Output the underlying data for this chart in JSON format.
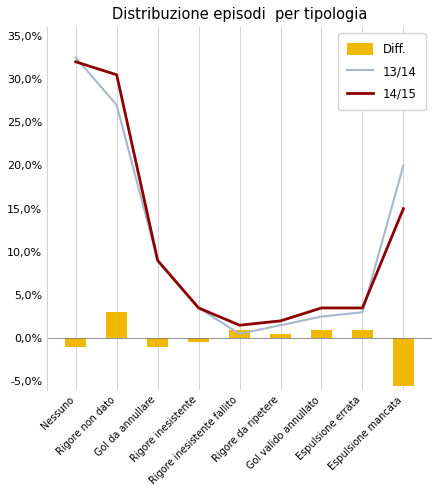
{
  "categories": [
    "Nessuno",
    "Rigore non dato",
    "Gol da annullare",
    "Rigore inesistente",
    "Rigore inesistente fallito",
    "Rigore da ripetere",
    "Gol valido annullato",
    "Espulsione errata",
    "Espulsione mancata"
  ],
  "series_1314": [
    0.325,
    0.27,
    0.09,
    0.035,
    0.005,
    0.015,
    0.025,
    0.03,
    0.2
  ],
  "series_1415": [
    0.32,
    0.305,
    0.09,
    0.035,
    0.015,
    0.02,
    0.035,
    0.035,
    0.15
  ],
  "diff": [
    -0.01,
    0.03,
    -0.01,
    -0.005,
    0.01,
    0.005,
    0.01,
    0.01,
    -0.055
  ],
  "title": "Distribuzione episodi  per tipologia",
  "color_1314": "#a8b8cc",
  "color_1415": "#8b0000",
  "color_diff": "#f0b800",
  "ylim": [
    -0.06,
    0.36
  ],
  "yticks": [
    -0.05,
    0.0,
    0.05,
    0.1,
    0.15,
    0.2,
    0.25,
    0.3,
    0.35
  ],
  "bar_width": 0.5,
  "legend_labels": [
    "Diff.",
    "13/14",
    "14/15"
  ],
  "figwidth": 4.39,
  "figheight": 4.93,
  "dpi": 100
}
